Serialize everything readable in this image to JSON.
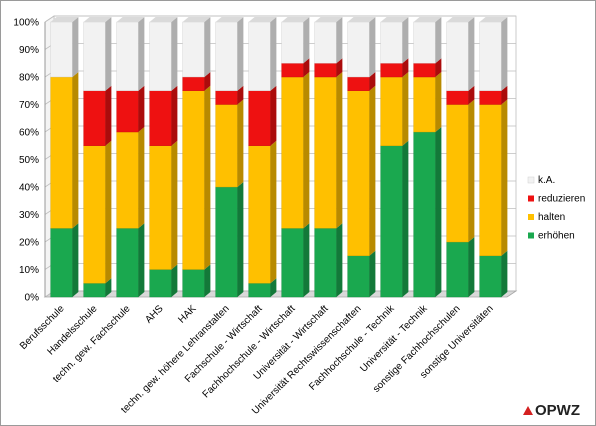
{
  "chart_data": {
    "type": "bar",
    "stacked": true,
    "percent": true,
    "ylim": [
      0,
      100
    ],
    "yticks": [
      "0%",
      "10%",
      "20%",
      "30%",
      "40%",
      "50%",
      "60%",
      "70%",
      "80%",
      "90%",
      "100%"
    ],
    "categories": [
      "Berufsschule",
      "Handelsschule",
      "techn. gew. Fachschule",
      "AHS",
      "HAK",
      "techn. gew. höhere Lehranstalten",
      "Fachschule - Wirtschaft",
      "Fachhochschule - Wirtschaft",
      "Universität - Wirtschaft",
      "Universität Rechtswissenschaften",
      "Fachhochschule - Technik",
      "Universität - Technik",
      "sonstige Fachhochschulen",
      "sonstige Universitäten"
    ],
    "series": [
      {
        "name": "erhöhen",
        "color": "#1aa84f",
        "values": [
          25,
          5,
          25,
          10,
          10,
          40,
          5,
          25,
          25,
          15,
          55,
          60,
          20,
          15
        ]
      },
      {
        "name": "halten",
        "color": "#ffc000",
        "values": [
          55,
          50,
          35,
          45,
          65,
          30,
          50,
          55,
          55,
          60,
          25,
          20,
          50,
          55
        ]
      },
      {
        "name": "reduzieren",
        "color": "#ee1111",
        "values": [
          0,
          20,
          15,
          20,
          5,
          5,
          20,
          5,
          5,
          5,
          5,
          5,
          5,
          5
        ]
      },
      {
        "name": "k.A.",
        "color": "#f2f2f2",
        "values": [
          20,
          25,
          25,
          25,
          20,
          25,
          25,
          15,
          15,
          20,
          15,
          15,
          25,
          25
        ]
      }
    ],
    "legend_position": "right"
  },
  "logo": {
    "text": "OPWZ",
    "color": "#d42020"
  }
}
